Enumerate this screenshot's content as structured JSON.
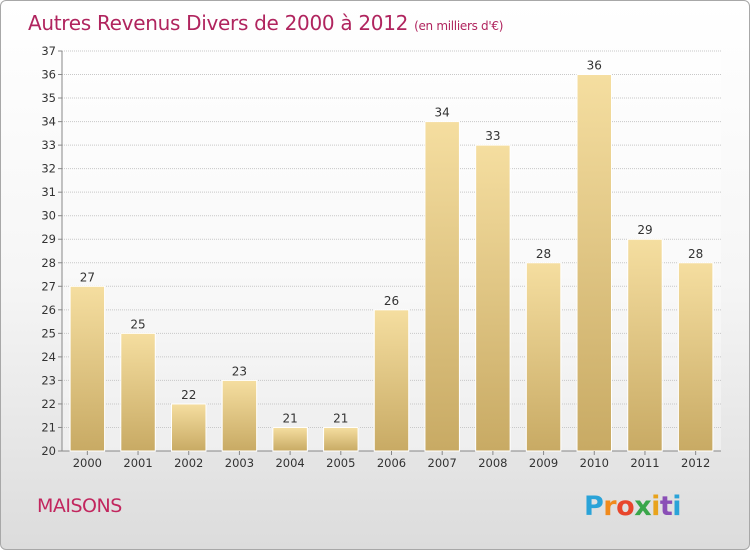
{
  "header": {
    "title": "Autres Revenus Divers de 2000 à 2012",
    "unit": "(en milliers d'€)"
  },
  "footer": {
    "commune": "MAISONS",
    "logo_text": "Proxiti",
    "logo_colors": [
      "#2aa3d8",
      "#f08a1c",
      "#e8462c",
      "#3aa64a",
      "#e8a31c",
      "#8a4fb6",
      "#2aa3d8"
    ]
  },
  "colors": {
    "title": "#b0245e",
    "bar_light": "#f5dea0",
    "bar_dark": "#c8aa64",
    "grid": "#c8c8c8",
    "axis": "#888888"
  },
  "chart_data": {
    "type": "bar",
    "title": "Autres Revenus Divers de 2000 à 2012",
    "subtitle": "(en milliers d'€)",
    "categories": [
      "2000",
      "2001",
      "2002",
      "2003",
      "2004",
      "2005",
      "2006",
      "2007",
      "2008",
      "2009",
      "2010",
      "2011",
      "2012"
    ],
    "values": [
      27,
      25,
      22,
      23,
      21,
      21,
      26,
      34,
      33,
      28,
      36,
      29,
      28
    ],
    "ylim": [
      20,
      37
    ],
    "yticks": [
      20,
      21,
      22,
      23,
      24,
      25,
      26,
      27,
      28,
      29,
      30,
      31,
      32,
      33,
      34,
      35,
      36,
      37
    ],
    "grid": true,
    "xlabel": "",
    "ylabel": ""
  }
}
